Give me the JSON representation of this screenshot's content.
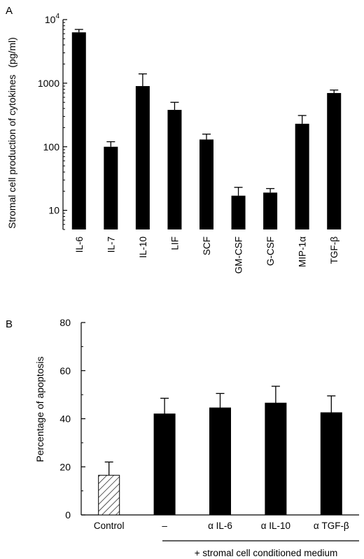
{
  "chart_data": [
    {
      "panel": "A",
      "type": "bar",
      "title": "",
      "xlabel": "",
      "ylabel": "Stromal cell production of cytokines",
      "yunit": "(pg/ml)",
      "yscale": "log",
      "ylim": [
        5,
        10000
      ],
      "yticks": [
        {
          "value": 10,
          "label": "10"
        },
        {
          "value": 100,
          "label": "100"
        },
        {
          "value": 1000,
          "label": "1000"
        },
        {
          "value": 10000,
          "label": "10",
          "sup": "4"
        }
      ],
      "categories": [
        "IL-6",
        "IL-7",
        "IL-10",
        "LIF",
        "SCF",
        "GM-CSF",
        "G-CSF",
        "MIP-1α",
        "TGF-β"
      ],
      "values": [
        6300,
        100,
        900,
        380,
        130,
        17,
        19,
        230,
        700
      ],
      "errors": [
        700,
        20,
        500,
        120,
        28,
        6,
        3,
        80,
        80
      ],
      "grid": false,
      "legend": "none",
      "bar_color": "#000000"
    },
    {
      "panel": "B",
      "type": "bar",
      "title": "",
      "xlabel": "",
      "ylabel": "Percentage of apoptosis",
      "ylim": [
        0,
        80
      ],
      "yticks": [
        0,
        20,
        40,
        60,
        80
      ],
      "categories": [
        "Control",
        "–",
        "α IL-6",
        "α IL-10",
        "α TGF-β"
      ],
      "values": [
        16.5,
        42,
        44.5,
        46.5,
        42.5
      ],
      "errors": [
        5.5,
        6.5,
        6,
        7,
        7
      ],
      "bar_styles": [
        "hatched",
        "solid",
        "solid",
        "solid",
        "solid"
      ],
      "group_label": "+ stromal cell conditioned medium",
      "grid": false,
      "legend": "none",
      "bar_color": "#000000"
    }
  ]
}
